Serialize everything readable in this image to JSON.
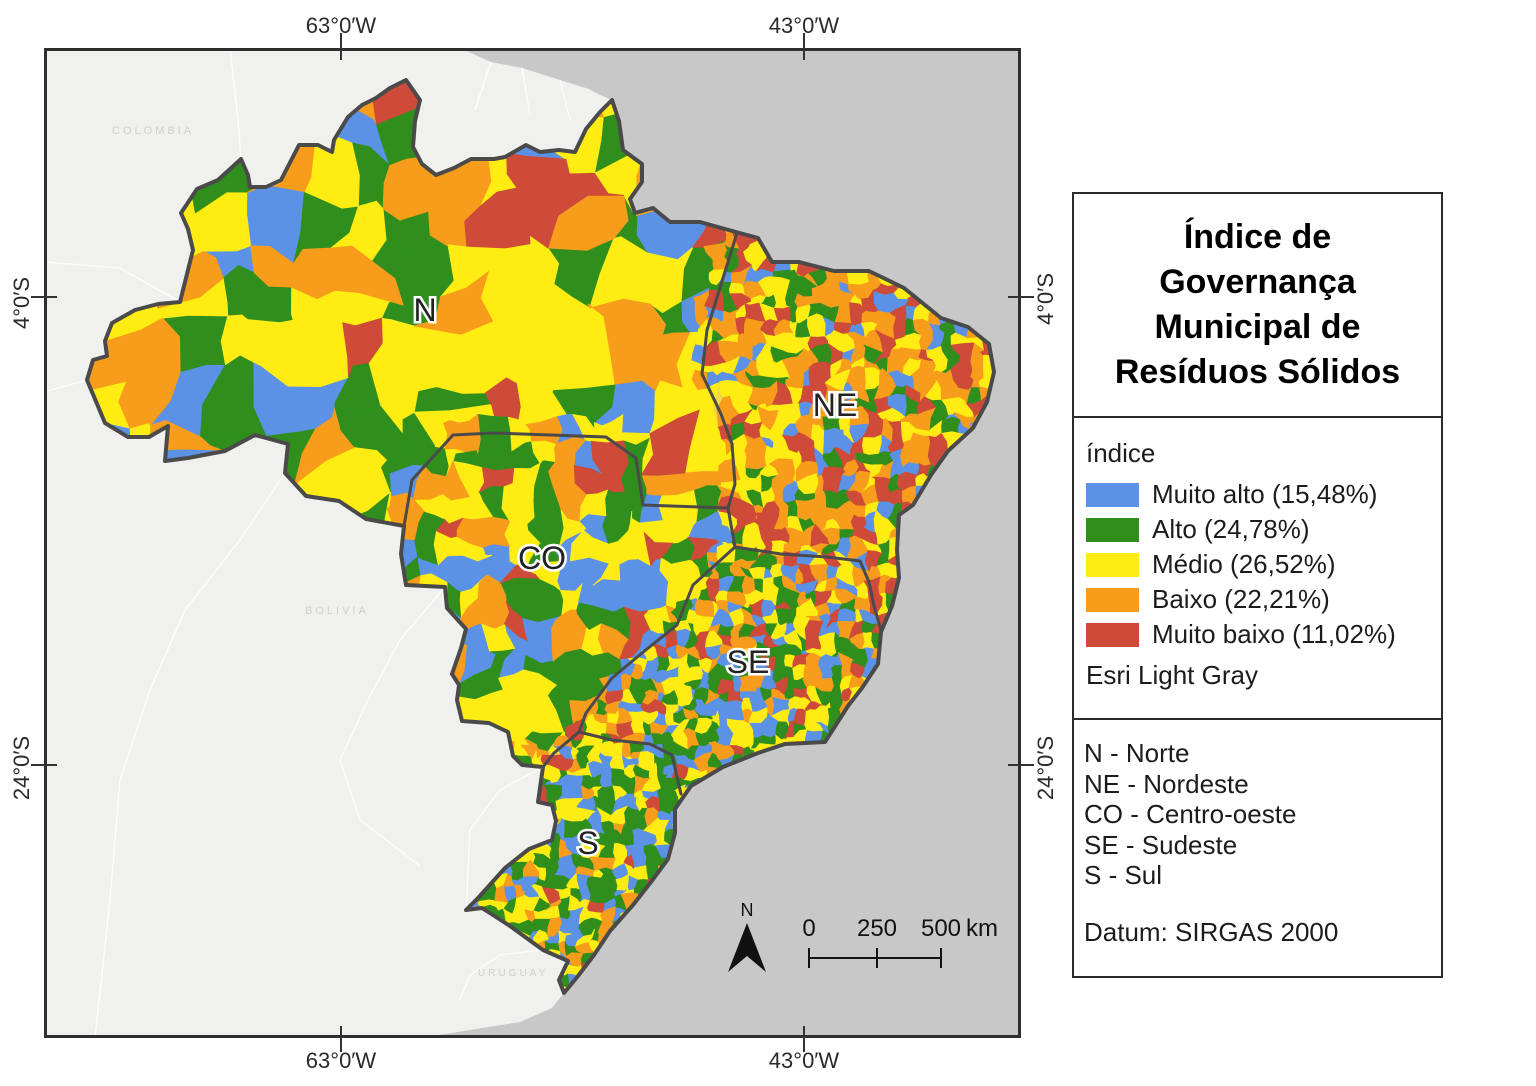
{
  "map_frame": {
    "graticule": {
      "west_lon": "63°0′W",
      "east_lon": "43°0′W",
      "north_lat": "4°0′S",
      "south_lat": "24°0′S"
    },
    "region_labels": [
      "N",
      "NE",
      "CO",
      "SE",
      "S"
    ],
    "basemap_labels": [
      "COLOMBIA",
      "BOLIVIA",
      "URUGUAY"
    ],
    "scalebar": {
      "tick_labels": [
        "0",
        "250",
        "500"
      ],
      "unit": "km"
    },
    "north_arrow_label": "N"
  },
  "panel": {
    "title_lines": [
      "Índice de",
      "Governança",
      "Municipal de",
      "Resíduos Sólidos"
    ],
    "legend": {
      "header": "índice",
      "items": [
        {
          "label": "Muito alto (15,48%)",
          "value_pct": 15.48,
          "color": "#5B92E5"
        },
        {
          "label": "Alto (24,78%)",
          "value_pct": 24.78,
          "color": "#2F8E1C"
        },
        {
          "label": "Médio (26,52%)",
          "value_pct": 26.52,
          "color": "#FFEC12"
        },
        {
          "label": "Baixo (22,21%)",
          "value_pct": 22.21,
          "color": "#F89C1C"
        },
        {
          "label": "Muito baixo (11,02%)",
          "value_pct": 11.02,
          "color": "#CD4B38"
        }
      ],
      "basemap_note": "Esri Light Gray"
    },
    "regions_key": [
      "N - Norte",
      "NE - Nordeste",
      "CO - Centro-oeste",
      "SE - Sudeste",
      "S - Sul"
    ],
    "datum": "Datum: SIRGAS 2000"
  },
  "colors": {
    "ocean": "#C8C8C8",
    "neighbor_land": "#F0F0EE",
    "country_border": "#FFFFFF",
    "brazil_boundary": "#4A4A4A",
    "frame": "#2E2E2E",
    "class_colors": [
      "#5B92E5",
      "#2F8E1C",
      "#FFEC12",
      "#F89C1C",
      "#CD4B38"
    ]
  }
}
